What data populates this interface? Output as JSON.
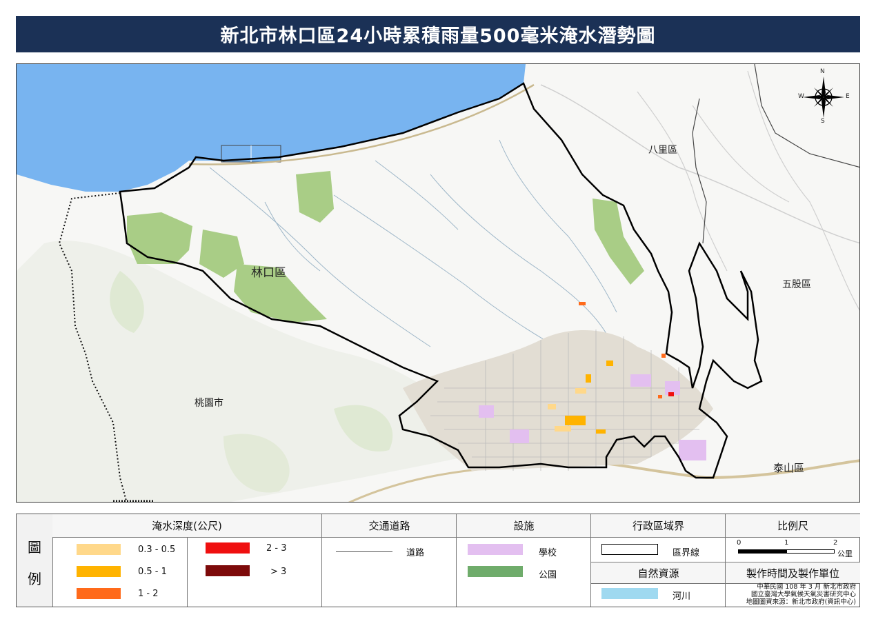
{
  "title": "新北市林口區24小時累積雨量500毫米淹水潛勢圖",
  "map": {
    "district_labels": [
      {
        "name": "林口區"
      },
      {
        "name": "八里區"
      },
      {
        "name": "五股區"
      },
      {
        "name": "泰山區"
      },
      {
        "name": "桃園市"
      }
    ],
    "compass": {
      "n": "N",
      "s": "S",
      "e": "E",
      "w": "W"
    }
  },
  "legend": {
    "side_title_1": "圖",
    "side_title_2": "例",
    "flood_depth": {
      "header": "淹水深度(公尺)",
      "classes": [
        {
          "label": "0.3 - 0.5",
          "color": "#ffd88a"
        },
        {
          "label": "0.5 - 1",
          "color": "#ffb300"
        },
        {
          "label": "1 - 2",
          "color": "#ff6a1a"
        },
        {
          "label": "2 - 3",
          "color": "#ef0f0f"
        },
        {
          "label": "> 3",
          "color": "#7d0a0a"
        }
      ]
    },
    "roads": {
      "header": "交通道路",
      "item": "道路"
    },
    "facilities": {
      "header": "設施",
      "items": [
        {
          "label": "學校",
          "color": "#e3bff0"
        },
        {
          "label": "公園",
          "color": "#6fac6b"
        }
      ]
    },
    "admin_boundary": {
      "header": "行政區域界",
      "item": "區界線"
    },
    "natural_resources": {
      "header": "自然資源",
      "item": "河川",
      "color": "#9fd9f0"
    },
    "scale": {
      "header": "比例尺",
      "ticks": [
        "0",
        "1",
        "2"
      ],
      "unit": "公里"
    },
    "production": {
      "header": "製作時間及製作單位",
      "line1": "中華民國 108 年 3 月 新北市政府",
      "line2": "國立臺灣大學氣候天氣災害研究中心",
      "line3": "地圖圖資來源：新北市政府(資訊中心)"
    }
  },
  "colors": {
    "title_bg": "#1b3156",
    "sea": "#78b4f0",
    "park": "#a9cd86",
    "boundary": "#000000"
  }
}
